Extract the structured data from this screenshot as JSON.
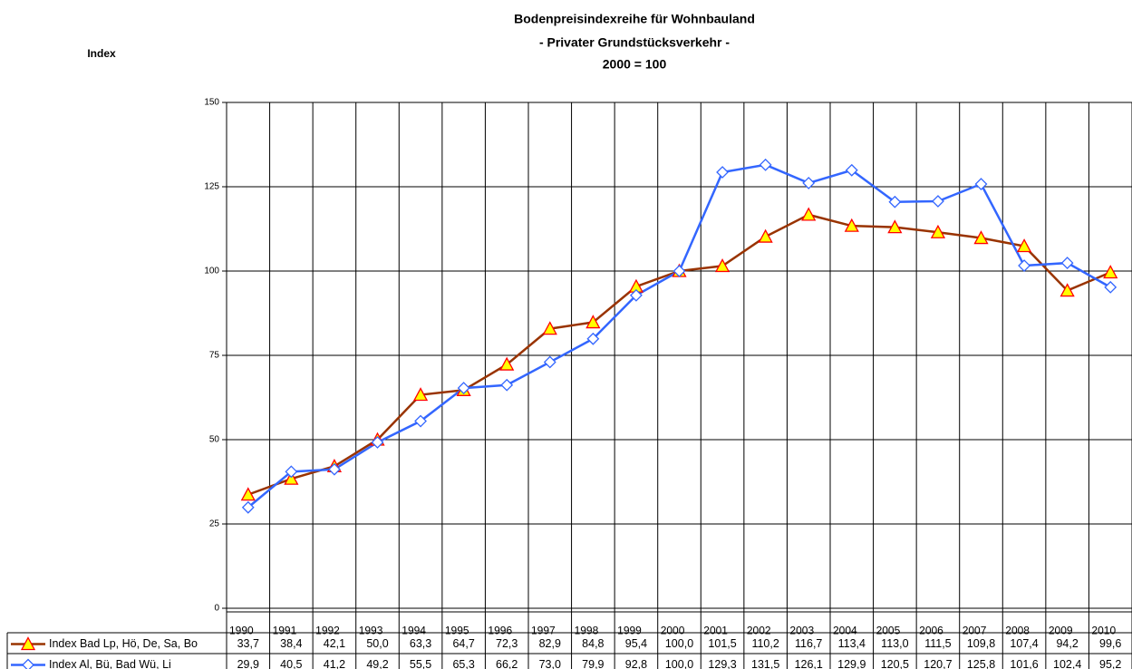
{
  "chart_data": {
    "type": "line",
    "title": [
      "Bodenpreisindexreihe für Wohnbauland",
      "- Privater Grundstücksverkehr -",
      "2000 = 100"
    ],
    "y_label": "Index",
    "categories": [
      "1990",
      "1991",
      "1992",
      "1993",
      "1994",
      "1995",
      "1996",
      "1997",
      "1998",
      "1999",
      "2000",
      "2001",
      "2002",
      "2003",
      "2004",
      "2005",
      "2006",
      "2007",
      "2008",
      "2009",
      "2010"
    ],
    "ylim": [
      0,
      150
    ],
    "yticks": [
      0,
      25,
      50,
      75,
      100,
      125,
      150
    ],
    "grid": true,
    "series": [
      {
        "name": "Index Bad Lp, Hö, De, Sa, Bo",
        "color": "#993300",
        "marker": "triangle",
        "marker_fill": "#ffff00",
        "marker_stroke": "#ff0000",
        "values": [
          33.7,
          38.4,
          42.1,
          50.0,
          63.3,
          64.7,
          72.3,
          82.9,
          84.8,
          95.4,
          100.0,
          101.5,
          110.2,
          116.7,
          113.4,
          113.0,
          111.5,
          109.8,
          107.4,
          94.2,
          99.6
        ],
        "value_labels": [
          "33,7",
          "38,4",
          "42,1",
          "50,0",
          "63,3",
          "64,7",
          "72,3",
          "82,9",
          "84,8",
          "95,4",
          "100,0",
          "101,5",
          "110,2",
          "116,7",
          "113,4",
          "113,0",
          "111,5",
          "109,8",
          "107,4",
          "94,2",
          "99,6"
        ]
      },
      {
        "name": "Index Al, Bü, Bad Wü, Li",
        "color": "#3366ff",
        "marker": "diamond",
        "marker_fill": "#ffffff",
        "marker_stroke": "#3366ff",
        "values": [
          29.9,
          40.5,
          41.2,
          49.2,
          55.5,
          65.3,
          66.2,
          73.0,
          79.9,
          92.8,
          100.0,
          129.3,
          131.5,
          126.1,
          129.9,
          120.5,
          120.7,
          125.8,
          101.6,
          102.4,
          95.2
        ],
        "value_labels": [
          "29,9",
          "40,5",
          "41,2",
          "49,2",
          "55,5",
          "65,3",
          "66,2",
          "73,0",
          "79,9",
          "92,8",
          "100,0",
          "129,3",
          "131,5",
          "126,1",
          "129,9",
          "120,5",
          "120,7",
          "125,8",
          "101,6",
          "102,4",
          "95,2"
        ]
      }
    ]
  }
}
